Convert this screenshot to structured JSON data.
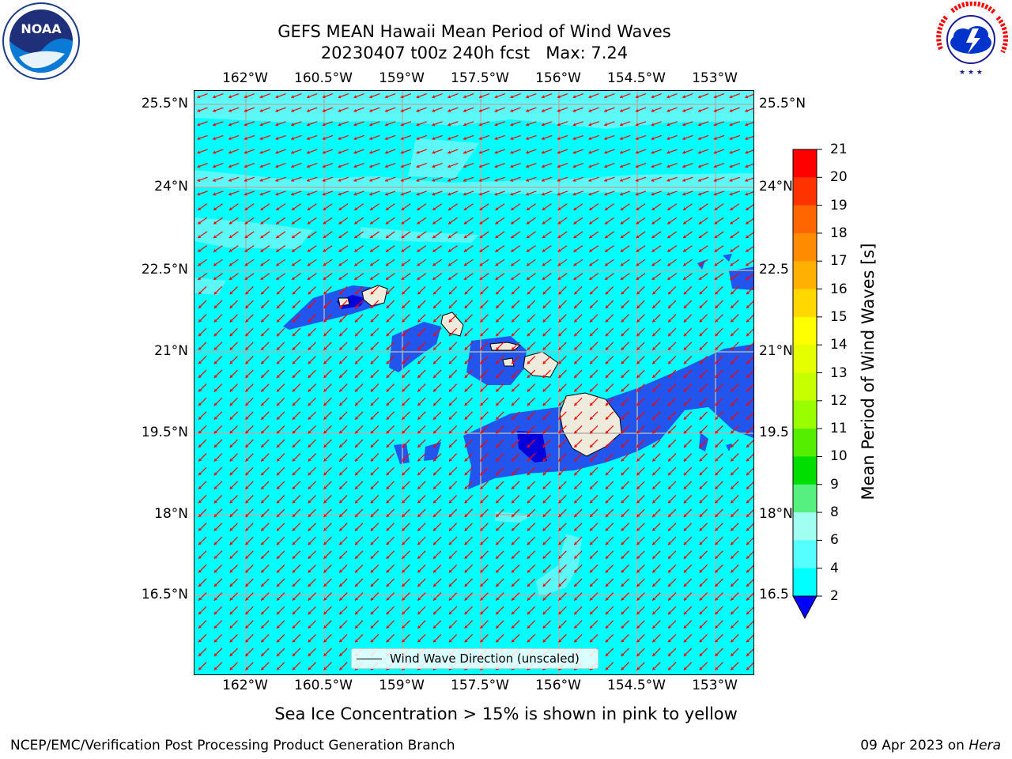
{
  "title": {
    "line1": "GEFS MEAN Hawaii Mean Period of Wind Waves",
    "line2": "20230407 t00z 240h fcst   Max: 7.24"
  },
  "logos": {
    "noaa": {
      "text": "NOAA",
      "ring_text": "NATIONAL OCEANIC AND ATMOSPHERIC ADMINISTRATION · U.S. DEPARTMENT OF COMMERCE"
    },
    "nws": {
      "ring_text": "NATIONAL WEATHER SERVICE"
    }
  },
  "axes": {
    "lon_ticks": [
      "162°W",
      "160.5°W",
      "159°W",
      "157.5°W",
      "156°W",
      "154.5°W",
      "153°W"
    ],
    "lat_ticks": [
      "25.5°N",
      "24°N",
      "22.5°N",
      "21°N",
      "19.5°N",
      "18°N",
      "16.5°N"
    ],
    "lat_ticks_right": [
      "25.5°N",
      "24°N",
      "22.5",
      "21°N",
      "19.5",
      "18°N",
      "16.5"
    ]
  },
  "legend": {
    "label": "Wind Wave Direction (unscaled)"
  },
  "colorbar": {
    "title": "Mean Period of Wind Waves [s]",
    "levels": [
      "21",
      "20",
      "19",
      "18",
      "17",
      "16",
      "15",
      "14",
      "13",
      "12",
      "11",
      "10",
      "9",
      "8",
      "6",
      "4",
      "2"
    ],
    "colors": [
      "#ff0000",
      "#ff3300",
      "#ff6600",
      "#ff8c00",
      "#ffb000",
      "#ffd800",
      "#ffff00",
      "#e6ff00",
      "#c8ff00",
      "#99ff00",
      "#55ee00",
      "#00dd00",
      "#55f080",
      "#a0fff0",
      "#55ffff",
      "#00ffff",
      "#0077ff"
    ],
    "under_color": "#0000ff"
  },
  "map": {
    "ocean_color": "#00ffff",
    "light_band_color": "#5cf8f8",
    "medium_color": "#2255ee",
    "deep_color": "#0000dd",
    "land_color": "#efebdc",
    "arrow_color": "#ff0000",
    "grid_color": "#b0b0b0"
  },
  "note": "Sea Ice Concentration > 15% is shown in pink to yellow",
  "footer": {
    "left": "NCEP/EMC/Verification Post Processing Product Generation Branch",
    "right_date": "09 Apr 2023 on ",
    "right_host": "Hera"
  }
}
